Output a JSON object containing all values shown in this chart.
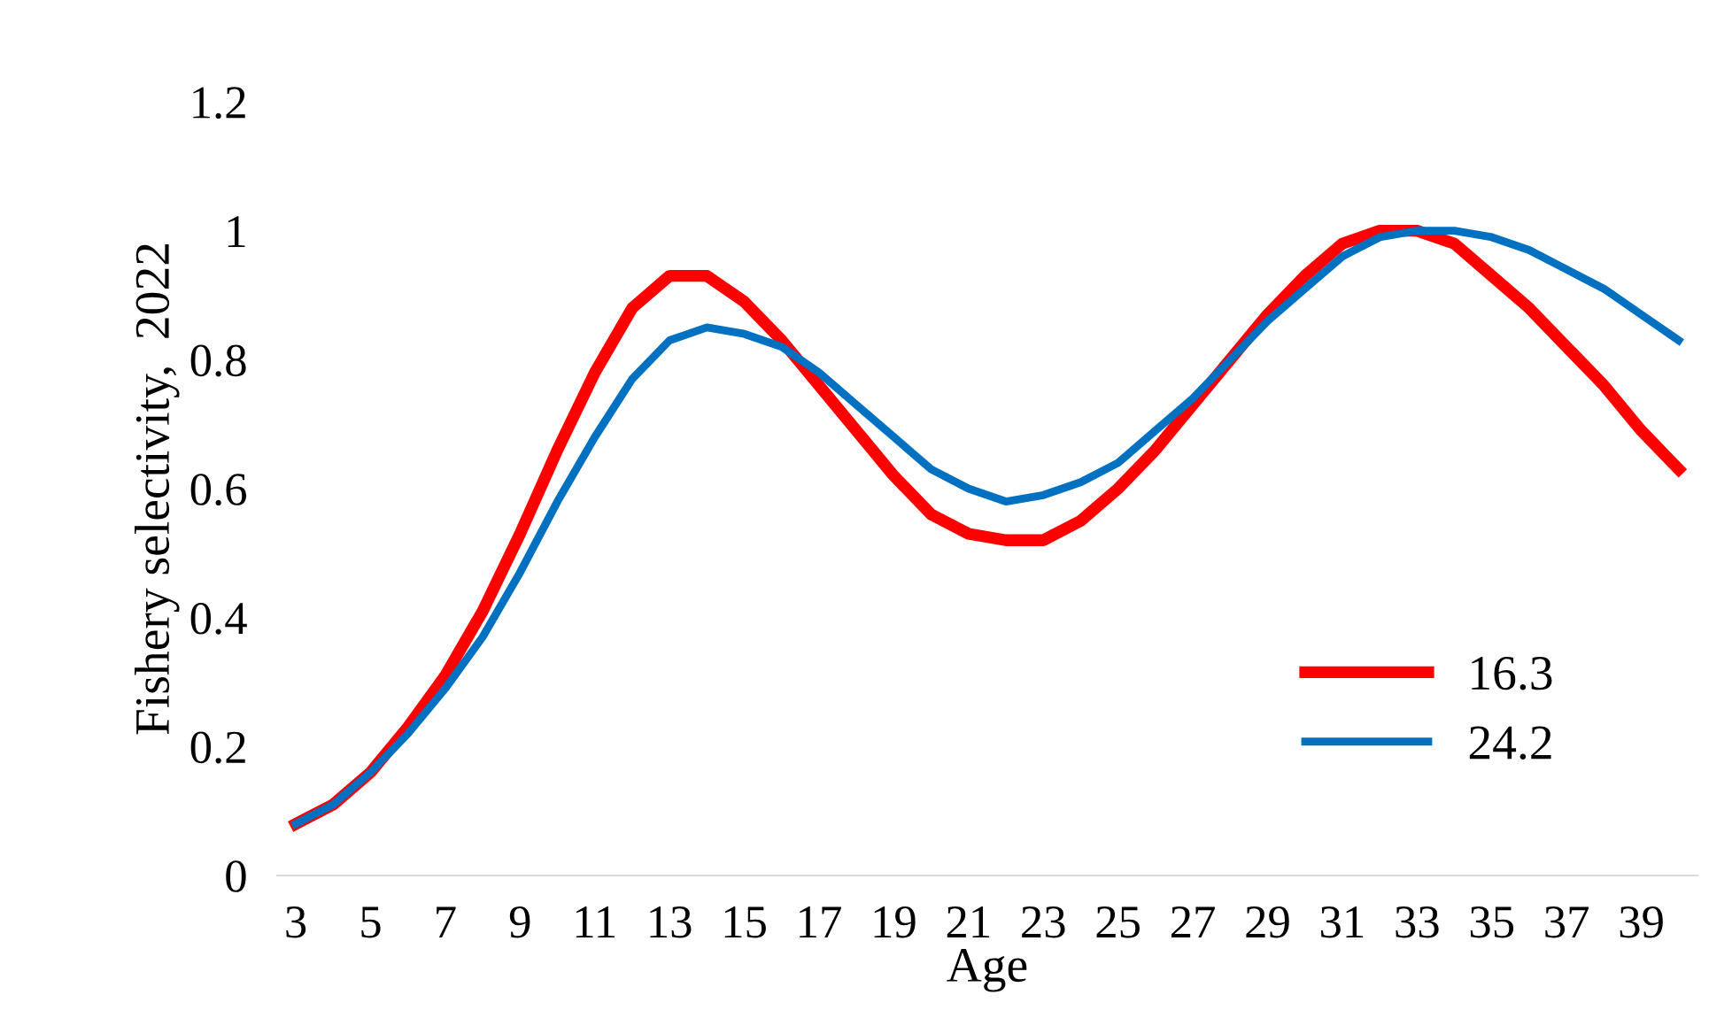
{
  "chart_data": {
    "type": "line",
    "xlabel": "Age",
    "ylabel": "Fishery selectivity,  2022",
    "categories": [
      "3",
      null,
      "5",
      null,
      "7",
      null,
      "9",
      null,
      "11",
      null,
      "13",
      null,
      "15",
      null,
      "17",
      null,
      "19",
      null,
      "21",
      null,
      "23",
      null,
      "25",
      null,
      "27",
      null,
      "29",
      null,
      "31",
      null,
      "33",
      null,
      "35",
      null,
      "37",
      null,
      "39",
      null
    ],
    "series": [
      {
        "name": "16.3",
        "color": "#ff0000",
        "values": [
          0.08,
          0.11,
          0.16,
          0.23,
          0.31,
          0.41,
          0.53,
          0.66,
          0.78,
          0.88,
          0.93,
          0.93,
          0.89,
          0.83,
          0.76,
          0.69,
          0.62,
          0.56,
          0.53,
          0.52,
          0.52,
          0.55,
          0.6,
          0.66,
          0.73,
          0.8,
          0.87,
          0.93,
          0.98,
          1.0,
          1.0,
          0.98,
          0.93,
          0.88,
          0.82,
          0.76,
          0.69,
          0.63
        ]
      },
      {
        "name": "24.2",
        "color": "#0070c0",
        "values": [
          0.08,
          0.11,
          0.16,
          0.22,
          0.29,
          0.37,
          0.47,
          0.58,
          0.68,
          0.77,
          0.83,
          0.85,
          0.84,
          0.82,
          0.78,
          0.73,
          0.68,
          0.63,
          0.6,
          0.58,
          0.59,
          0.61,
          0.64,
          0.69,
          0.74,
          0.8,
          0.86,
          0.91,
          0.96,
          0.99,
          1.0,
          1.0,
          0.99,
          0.97,
          0.94,
          0.91,
          0.87,
          0.83
        ]
      }
    ],
    "ylim": [
      0,
      1.2
    ],
    "yticks": [
      0,
      0.2,
      0.4,
      0.6,
      0.8,
      1,
      1.2
    ],
    "grid": false,
    "legend": "bottom right",
    "marker": "none",
    "line_style": "solid"
  }
}
